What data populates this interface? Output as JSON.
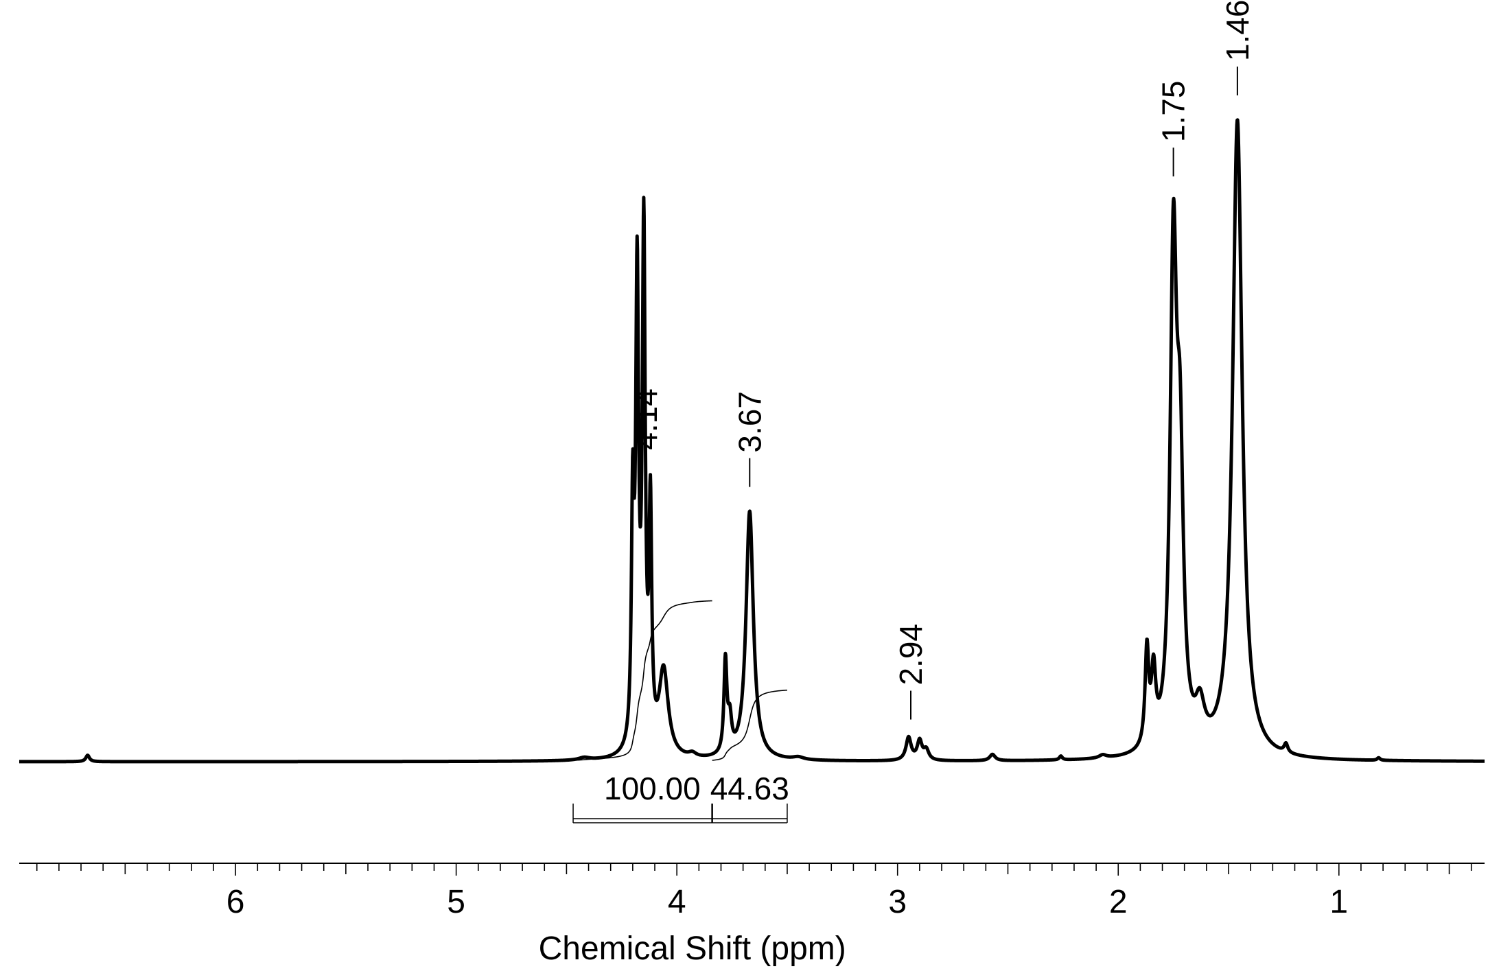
{
  "chart_data": {
    "type": "line",
    "title": "",
    "xlabel": "Chemical Shift (ppm)",
    "ylabel": "",
    "xlim": [
      6.98,
      0.34
    ],
    "x_reversed": true,
    "grid": false,
    "tick_labels": [
      "6",
      "5",
      "4",
      "3",
      "2",
      "1"
    ],
    "tick_values": [
      6,
      5,
      4,
      3,
      2,
      1
    ],
    "minor_tick_step": 0.1,
    "spectrum_peaks": [
      {
        "x": 6.67,
        "h": 0.01,
        "w": 0.01
      },
      {
        "x": 4.42,
        "h": 0.004,
        "w": 0.03
      },
      {
        "x": 4.2,
        "h": 0.36,
        "w": 0.007
      },
      {
        "x": 4.18,
        "h": 0.72,
        "w": 0.008
      },
      {
        "x": 4.15,
        "h": 0.8,
        "w": 0.008
      },
      {
        "x": 4.12,
        "h": 0.36,
        "w": 0.007
      },
      {
        "x": 4.06,
        "h": 0.135,
        "w": 0.025
      },
      {
        "x": 3.93,
        "h": 0.006,
        "w": 0.02
      },
      {
        "x": 3.78,
        "h": 0.145,
        "w": 0.008
      },
      {
        "x": 3.76,
        "h": 0.05,
        "w": 0.01
      },
      {
        "x": 3.67,
        "h": 0.39,
        "w": 0.02
      },
      {
        "x": 3.45,
        "h": 0.004,
        "w": 0.03
      },
      {
        "x": 2.95,
        "h": 0.036,
        "w": 0.014
      },
      {
        "x": 2.9,
        "h": 0.03,
        "w": 0.013
      },
      {
        "x": 2.87,
        "h": 0.016,
        "w": 0.014
      },
      {
        "x": 2.57,
        "h": 0.01,
        "w": 0.015
      },
      {
        "x": 2.26,
        "h": 0.006,
        "w": 0.008
      },
      {
        "x": 2.07,
        "h": 0.005,
        "w": 0.02
      },
      {
        "x": 1.87,
        "h": 0.15,
        "w": 0.01
      },
      {
        "x": 1.84,
        "h": 0.11,
        "w": 0.012
      },
      {
        "x": 1.75,
        "h": 0.76,
        "w": 0.018
      },
      {
        "x": 1.72,
        "h": 0.4,
        "w": 0.018
      },
      {
        "x": 1.63,
        "h": 0.06,
        "w": 0.025
      },
      {
        "x": 1.46,
        "h": 1.0,
        "w": 0.026
      },
      {
        "x": 1.24,
        "h": 0.014,
        "w": 0.01
      },
      {
        "x": 0.82,
        "h": 0.004,
        "w": 0.008
      }
    ],
    "peak_labels": [
      {
        "x": 4.14,
        "text": "4.14"
      },
      {
        "x": 3.67,
        "text": "3.67"
      },
      {
        "x": 2.94,
        "text": "2.94"
      },
      {
        "x": 1.75,
        "text": "1.75"
      },
      {
        "x": 1.46,
        "text": "1.46"
      }
    ],
    "integrals": [
      {
        "from": 4.47,
        "to": 3.84,
        "value_text": "100.00",
        "height": 0.25
      },
      {
        "from": 3.84,
        "to": 3.5,
        "value_text": "44.63",
        "height": 0.11
      }
    ]
  }
}
